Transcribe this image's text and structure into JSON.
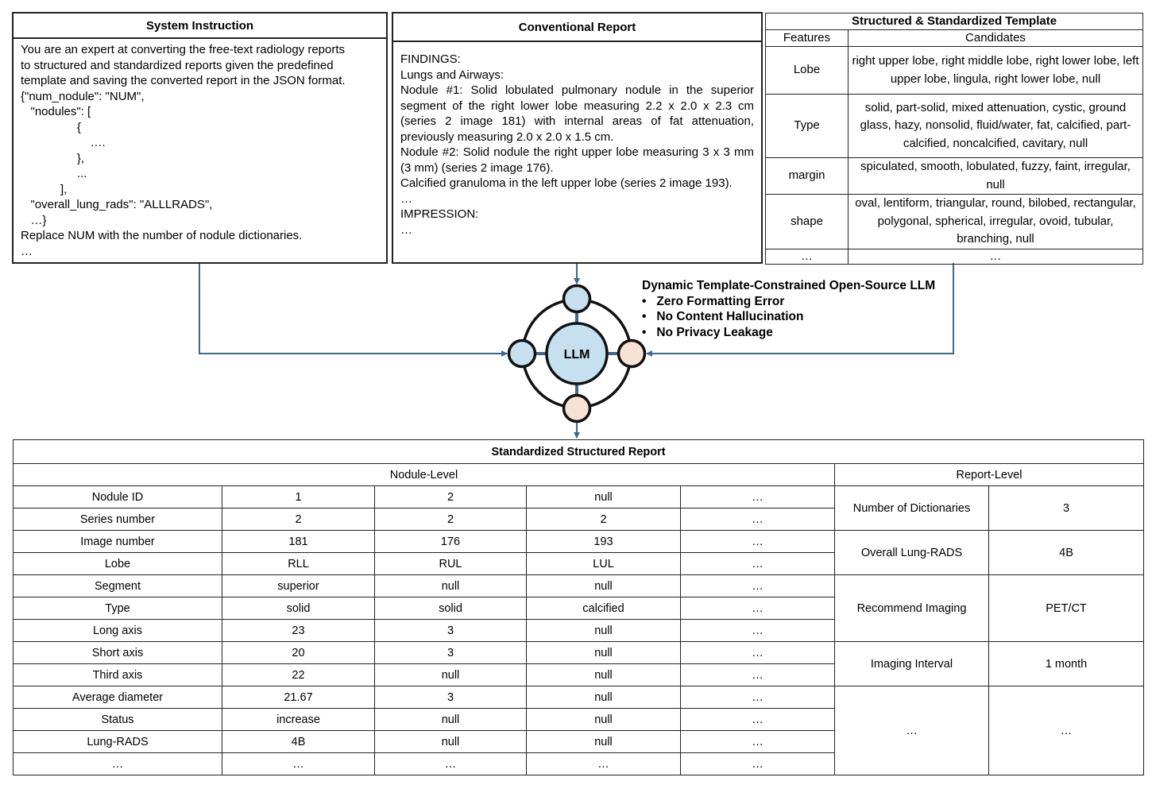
{
  "system_instruction": {
    "title": "System Instruction",
    "body": "You are an expert at converting the free-text radiology reports\nto structured and standardized reports given the predefined\ntemplate and saving the converted report in the JSON format.\n{\"num_nodule\": \"NUM\",\n   \"nodules\": [\n                 {\n                     ….\n                 },\n                 ...\n            ],\n   \"overall_lung_rads\": \"ALLLRADS\",\n   …}\nReplace NUM with the number of nodule dictionaries.\n…"
  },
  "conventional_report": {
    "title": "Conventional Report",
    "lines": [
      "FINDINGS:",
      "Lungs and Airways:",
      "Nodule #1: Solid lobulated pulmonary nodule in the superior segment of the right lower lobe measuring 2.2 x 2.0 x 2.3 cm (series 2 image 181) with internal areas of fat attenuation, previously measuring 2.0 x 2.0 x 1.5 cm.",
      "Nodule #2: Solid nodule the right upper lobe measuring 3 x 3 mm (3 mm) (series 2 image 176).",
      "Calcified granuloma in the left upper lobe (series 2 image 193).",
      "…",
      "IMPRESSION:",
      "…"
    ]
  },
  "template": {
    "title": "Structured & Standardized Template",
    "headers": [
      "Features",
      "Candidates"
    ],
    "rows": [
      {
        "feature": "Lobe",
        "candidates": "right upper lobe, right middle lobe, right lower lobe, left upper lobe, lingula, right lower lobe, null"
      },
      {
        "feature": "Type",
        "candidates": "solid, part-solid, mixed attenuation, cystic, ground glass, hazy, nonsolid, fluid/water, fat, calcified, part-calcified, noncalcified, cavitary, null"
      },
      {
        "feature": "margin",
        "candidates": "spiculated, smooth, lobulated, fuzzy, faint, irregular, null"
      },
      {
        "feature": "shape",
        "candidates": "oval, lentiform, triangular, round, bilobed, rectangular, polygonal, spherical, irregular, ovoid, tubular, branching, null"
      },
      {
        "feature": "…",
        "candidates": "…"
      }
    ]
  },
  "llm": {
    "label": "LLM",
    "title": "Dynamic Template-Constrained Open-Source LLM",
    "bullets": [
      "Zero Formatting Error",
      "No Content Hallucination",
      "No Privacy Leakage"
    ],
    "colors": {
      "blue": "#c6e0f0",
      "peach": "#f7e2d5",
      "arrow": "#3d6a8c"
    }
  },
  "structured_report": {
    "title": "Standardized Structured Report",
    "nodule_level_label": "Nodule-Level",
    "report_level_label": "Report-Level",
    "nodule_rows": [
      [
        "Nodule ID",
        "1",
        "2",
        "null",
        "…"
      ],
      [
        "Series number",
        "2",
        "2",
        "2",
        "…"
      ],
      [
        "Image number",
        "181",
        "176",
        "193",
        "…"
      ],
      [
        "Lobe",
        "RLL",
        "RUL",
        "LUL",
        "…"
      ],
      [
        "Segment",
        "superior",
        "null",
        "null",
        "…"
      ],
      [
        "Type",
        "solid",
        "solid",
        "calcified",
        "…"
      ],
      [
        "Long axis",
        "23",
        "3",
        "null",
        "…"
      ],
      [
        "Short axis",
        "20",
        "3",
        "null",
        "…"
      ],
      [
        "Third axis",
        "22",
        "null",
        "null",
        "…"
      ],
      [
        "Average diameter",
        "21.67",
        "3",
        "null",
        "…"
      ],
      [
        "Status",
        "increase",
        "null",
        "null",
        "…"
      ],
      [
        "Lung-RADS",
        "4B",
        "null",
        "null",
        "…"
      ],
      [
        "…",
        "…",
        "…",
        "…",
        "…"
      ]
    ],
    "report_rows": [
      {
        "label": "Number of Dictionaries",
        "value": "3"
      },
      {
        "label": "Overall Lung-RADS",
        "value": "4B"
      },
      {
        "label": "Recommend Imaging",
        "value": "PET/CT"
      },
      {
        "label": "Imaging Interval",
        "value": "1 month"
      },
      {
        "label": "…",
        "value": "…"
      }
    ]
  }
}
